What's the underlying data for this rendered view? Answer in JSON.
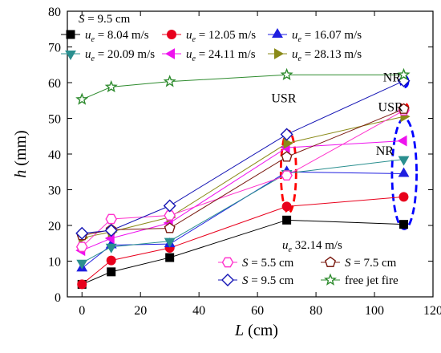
{
  "chart_data": {
    "type": "line",
    "title": "",
    "xlabel_var": "L",
    "xlabel_unit": " (cm)",
    "ylabel_var": "h",
    "ylabel_unit": " (mm)",
    "xlim": [
      -5,
      120
    ],
    "ylim": [
      0,
      80
    ],
    "xticks": [
      0,
      20,
      40,
      60,
      80,
      100,
      120
    ],
    "yticks": [
      0,
      10,
      20,
      30,
      40,
      50,
      60,
      70,
      80
    ],
    "legend1_header": "S = 9.5 cm",
    "legend2_header": "u_e = 32.14 m/s",
    "series": [
      {
        "name": "u_e = 8.04 m/s",
        "marker": "square",
        "filled": true,
        "color": "#000000",
        "x": [
          0,
          10,
          30,
          70,
          110
        ],
        "y": [
          3.5,
          7,
          11,
          21.5,
          20.3
        ]
      },
      {
        "name": "u_e = 12.05 m/s",
        "marker": "circle",
        "filled": true,
        "color": "#e8001c",
        "x": [
          0,
          10,
          30,
          70,
          110
        ],
        "y": [
          3.5,
          10.2,
          13.7,
          25.3,
          28
        ]
      },
      {
        "name": "u_e = 16.07 m/s",
        "marker": "triangle-up",
        "filled": true,
        "color": "#1f1fe0",
        "x": [
          0,
          10,
          30,
          70,
          110
        ],
        "y": [
          8,
          14.5,
          14.8,
          35,
          34.5
        ]
      },
      {
        "name": "u_e = 20.09 m/s",
        "marker": "triangle-down",
        "filled": true,
        "color": "#2a8f8f",
        "x": [
          0,
          10,
          30,
          70,
          110
        ],
        "y": [
          9.5,
          14,
          15.6,
          34.6,
          38.5
        ]
      },
      {
        "name": "u_e = 24.11 m/s",
        "marker": "triangle-left",
        "filled": true,
        "color": "#ee12ee",
        "x": [
          0,
          10,
          30,
          70,
          110
        ],
        "y": [
          13,
          16.4,
          20.7,
          41.8,
          43.7
        ]
      },
      {
        "name": "u_e = 28.13 m/s",
        "marker": "triangle-right",
        "filled": true,
        "color": "#8a8a18",
        "x": [
          0,
          10,
          30,
          70,
          110
        ],
        "y": [
          16.5,
          18.2,
          22.3,
          43,
          50.5
        ]
      },
      {
        "name": "S = 5.5 cm",
        "marker": "hexagon",
        "filled": false,
        "color": "#ff33cc",
        "x": [
          0,
          10,
          30,
          70,
          110
        ],
        "y": [
          14,
          21.8,
          22.8,
          34,
          52.2
        ]
      },
      {
        "name": "S = 7.5 cm",
        "marker": "pentagon",
        "filled": false,
        "color": "#7a1a10",
        "x": [
          0,
          10,
          30,
          70,
          110
        ],
        "y": [
          17.2,
          18.8,
          19.2,
          39.2,
          52.6
        ]
      },
      {
        "name": "S = 9.5 cm",
        "marker": "diamond",
        "filled": false,
        "color": "#1414b4",
        "x": [
          0,
          10,
          30,
          70,
          110
        ],
        "y": [
          17.8,
          18.6,
          25.5,
          45.5,
          60.5
        ]
      },
      {
        "name": "free jet fire",
        "marker": "star",
        "filled": false,
        "color": "#2e8b2e",
        "x": [
          0,
          10,
          30,
          70,
          110
        ],
        "y": [
          55.3,
          58.8,
          60.3,
          62.2,
          62.2
        ]
      }
    ],
    "annotations": [
      {
        "text": "USR",
        "x": 69,
        "y": 54.5
      },
      {
        "text": "USR",
        "x": 105.5,
        "y": 52
      },
      {
        "text": "NR",
        "x": 106,
        "y": 60.3
      },
      {
        "text": "NR",
        "x": 103.5,
        "y": 39.8
      }
    ],
    "ellipses": [
      {
        "cx": 70.6,
        "cy": 35,
        "rx": 2.6,
        "ry": 11.5,
        "color": "#ff0000"
      },
      {
        "cx": 110.2,
        "cy": 52.8,
        "rx": 1.3,
        "ry": 1.4,
        "color": "#ff0000"
      },
      {
        "cx": 110.2,
        "cy": 60.3,
        "rx": 1.3,
        "ry": 1.6,
        "color": "#0000ff"
      },
      {
        "cx": 110.2,
        "cy": 34.5,
        "rx": 4.2,
        "ry": 15.5,
        "color": "#0000ff"
      }
    ]
  }
}
